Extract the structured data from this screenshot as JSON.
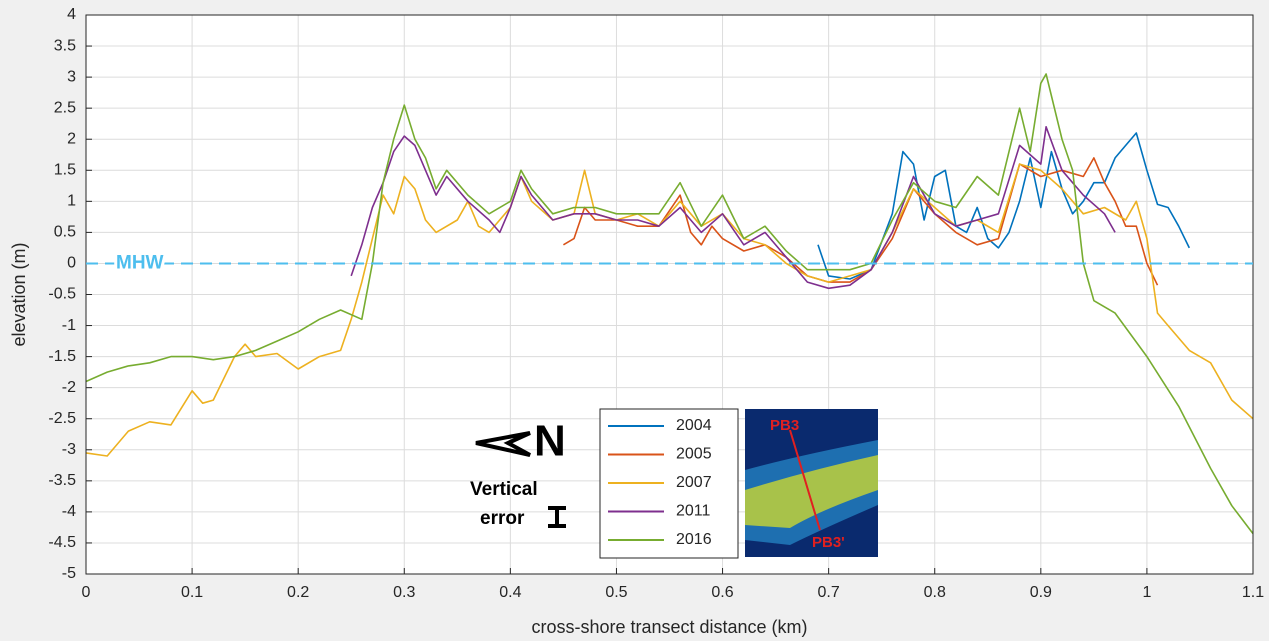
{
  "chart_data": {
    "type": "line",
    "x_label": "cross-shore transect distance (km)",
    "y_label": "elevation (m)",
    "xlim": [
      0,
      1.1
    ],
    "xticks": [
      0,
      0.1,
      0.2,
      0.3,
      0.4,
      0.5,
      0.6,
      0.7,
      0.8,
      0.9,
      1,
      1.1
    ],
    "ylim": [
      -5,
      4
    ],
    "yticks": [
      -5,
      -4.5,
      -4,
      -3.5,
      -3,
      -2.5,
      -2,
      -1.5,
      -1,
      -0.5,
      0,
      0.5,
      1,
      1.5,
      2,
      2.5,
      3,
      3.5,
      4
    ],
    "grid": true,
    "legend_position": "lower center",
    "reference_line": {
      "value": 0,
      "label": "MHW",
      "color": "#4dbeee"
    },
    "north_label": "N",
    "error_label": "Vertical error",
    "inset_labels": [
      "PB3",
      "PB3'"
    ],
    "series": [
      {
        "name": "2004",
        "color": "#0072bd",
        "x": [
          0.69,
          0.7,
          0.72,
          0.74,
          0.76,
          0.77,
          0.78,
          0.79,
          0.8,
          0.81,
          0.82,
          0.83,
          0.84,
          0.85,
          0.86,
          0.87,
          0.88,
          0.89,
          0.9,
          0.91,
          0.92,
          0.93,
          0.94,
          0.95,
          0.96,
          0.97,
          0.98,
          0.99,
          1.0,
          1.01,
          1.02,
          1.03,
          1.04
        ],
        "values": [
          0.3,
          -0.2,
          -0.25,
          -0.1,
          0.8,
          1.8,
          1.6,
          0.7,
          1.4,
          1.5,
          0.6,
          0.5,
          0.9,
          0.4,
          0.25,
          0.5,
          1.0,
          1.7,
          0.9,
          1.8,
          1.2,
          0.8,
          1.0,
          1.3,
          1.3,
          1.7,
          1.9,
          2.1,
          1.5,
          0.95,
          0.9,
          0.6,
          0.25
        ]
      },
      {
        "name": "2005",
        "color": "#d95319",
        "x": [
          0.45,
          0.46,
          0.47,
          0.48,
          0.5,
          0.52,
          0.54,
          0.56,
          0.57,
          0.58,
          0.59,
          0.6,
          0.62,
          0.64,
          0.66,
          0.68,
          0.7,
          0.72,
          0.74,
          0.76,
          0.78,
          0.8,
          0.82,
          0.84,
          0.86,
          0.88,
          0.9,
          0.92,
          0.94,
          0.95,
          0.96,
          0.97,
          0.98,
          0.99,
          1.0,
          1.01
        ],
        "values": [
          0.3,
          0.4,
          0.9,
          0.7,
          0.7,
          0.6,
          0.6,
          1.1,
          0.5,
          0.3,
          0.6,
          0.4,
          0.2,
          0.3,
          0.1,
          -0.2,
          -0.3,
          -0.3,
          -0.1,
          0.4,
          1.2,
          0.8,
          0.5,
          0.3,
          0.4,
          1.6,
          1.4,
          1.5,
          1.4,
          1.7,
          1.3,
          1.0,
          0.6,
          0.6,
          0.0,
          -0.35
        ]
      },
      {
        "name": "2007",
        "color": "#edb120",
        "x": [
          0,
          0.02,
          0.04,
          0.06,
          0.08,
          0.1,
          0.11,
          0.12,
          0.14,
          0.15,
          0.16,
          0.18,
          0.2,
          0.22,
          0.24,
          0.25,
          0.26,
          0.27,
          0.28,
          0.29,
          0.3,
          0.31,
          0.32,
          0.33,
          0.35,
          0.36,
          0.37,
          0.38,
          0.4,
          0.41,
          0.42,
          0.44,
          0.46,
          0.47,
          0.48,
          0.5,
          0.52,
          0.54,
          0.56,
          0.58,
          0.6,
          0.62,
          0.64,
          0.66,
          0.68,
          0.7,
          0.72,
          0.74,
          0.76,
          0.78,
          0.8,
          0.82,
          0.84,
          0.86,
          0.88,
          0.9,
          0.92,
          0.94,
          0.96,
          0.98,
          0.99,
          1.0,
          1.01,
          1.02,
          1.04,
          1.06,
          1.08,
          1.1
        ],
        "values": [
          -3.05,
          -3.1,
          -2.7,
          -2.55,
          -2.6,
          -2.05,
          -2.25,
          -2.2,
          -1.5,
          -1.3,
          -1.5,
          -1.45,
          -1.7,
          -1.5,
          -1.4,
          -0.9,
          -0.3,
          0.4,
          1.1,
          0.8,
          1.4,
          1.2,
          0.7,
          0.5,
          0.7,
          1.0,
          0.6,
          0.5,
          0.9,
          1.4,
          1.0,
          0.7,
          0.8,
          1.5,
          0.8,
          0.7,
          0.8,
          0.6,
          1.0,
          0.6,
          0.8,
          0.4,
          0.3,
          0.0,
          -0.2,
          -0.3,
          -0.2,
          -0.1,
          0.5,
          1.2,
          0.9,
          0.6,
          0.7,
          0.5,
          1.6,
          1.5,
          1.2,
          0.8,
          0.9,
          0.7,
          1.0,
          0.4,
          -0.8,
          -1.0,
          -1.4,
          -1.6,
          -2.2,
          -2.5
        ]
      },
      {
        "name": "2011",
        "color": "#7e2f8e",
        "x": [
          0.25,
          0.26,
          0.27,
          0.28,
          0.29,
          0.3,
          0.31,
          0.32,
          0.33,
          0.34,
          0.36,
          0.38,
          0.39,
          0.4,
          0.41,
          0.42,
          0.44,
          0.46,
          0.48,
          0.5,
          0.52,
          0.54,
          0.56,
          0.58,
          0.6,
          0.62,
          0.64,
          0.66,
          0.68,
          0.7,
          0.72,
          0.74,
          0.76,
          0.78,
          0.8,
          0.82,
          0.84,
          0.86,
          0.88,
          0.9,
          0.905,
          0.92,
          0.94,
          0.96,
          0.97
        ],
        "values": [
          -0.2,
          0.3,
          0.9,
          1.3,
          1.8,
          2.05,
          1.9,
          1.5,
          1.1,
          1.4,
          1.0,
          0.7,
          0.5,
          0.9,
          1.4,
          1.1,
          0.7,
          0.8,
          0.8,
          0.7,
          0.7,
          0.6,
          0.9,
          0.5,
          0.8,
          0.3,
          0.5,
          0.1,
          -0.3,
          -0.4,
          -0.35,
          -0.1,
          0.5,
          1.4,
          0.8,
          0.6,
          0.7,
          0.8,
          1.9,
          1.6,
          2.2,
          1.5,
          1.1,
          0.8,
          0.5
        ]
      },
      {
        "name": "2016",
        "color": "#77ac30",
        "x": [
          0,
          0.02,
          0.04,
          0.06,
          0.08,
          0.1,
          0.12,
          0.14,
          0.16,
          0.18,
          0.2,
          0.22,
          0.24,
          0.26,
          0.27,
          0.28,
          0.29,
          0.3,
          0.31,
          0.32,
          0.33,
          0.34,
          0.36,
          0.38,
          0.4,
          0.41,
          0.42,
          0.44,
          0.46,
          0.48,
          0.5,
          0.52,
          0.54,
          0.56,
          0.58,
          0.6,
          0.62,
          0.64,
          0.66,
          0.68,
          0.7,
          0.72,
          0.74,
          0.76,
          0.78,
          0.8,
          0.82,
          0.84,
          0.86,
          0.88,
          0.89,
          0.9,
          0.905,
          0.92,
          0.93,
          0.94,
          0.95,
          0.97,
          1.0,
          1.03,
          1.06,
          1.08,
          1.1
        ],
        "values": [
          -1.9,
          -1.75,
          -1.65,
          -1.6,
          -1.5,
          -1.5,
          -1.55,
          -1.5,
          -1.4,
          -1.25,
          -1.1,
          -0.9,
          -0.75,
          -0.9,
          0.0,
          1.3,
          2.0,
          2.55,
          2.0,
          1.7,
          1.2,
          1.5,
          1.1,
          0.8,
          1.0,
          1.5,
          1.2,
          0.8,
          0.9,
          0.9,
          0.8,
          0.8,
          0.8,
          1.3,
          0.6,
          1.1,
          0.4,
          0.6,
          0.2,
          -0.1,
          -0.1,
          -0.1,
          0.0,
          0.7,
          1.3,
          1.0,
          0.9,
          1.4,
          1.1,
          2.5,
          1.8,
          2.9,
          3.05,
          2.0,
          1.5,
          0.0,
          -0.6,
          -0.8,
          -1.5,
          -2.3,
          -3.3,
          -3.9,
          -4.35
        ]
      }
    ]
  }
}
